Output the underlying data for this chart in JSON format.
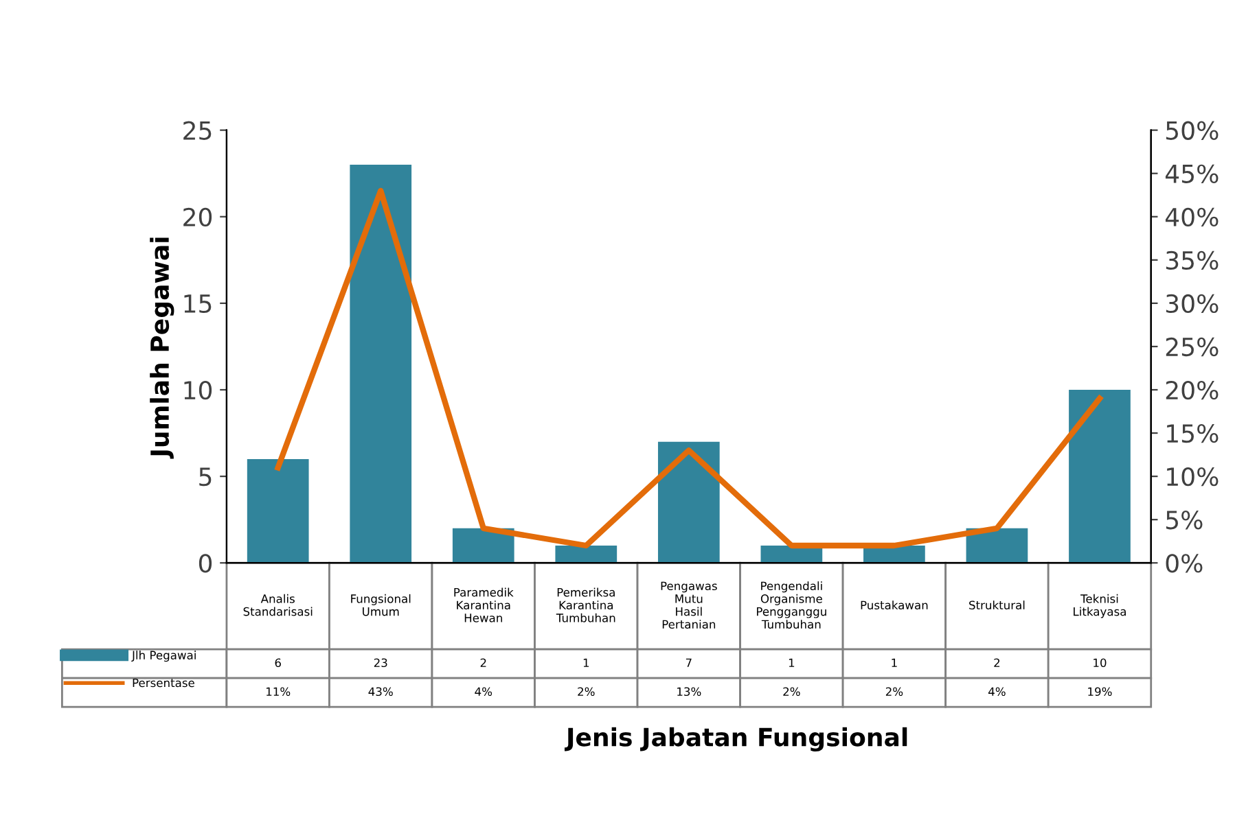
{
  "chart_data": {
    "type": "bar",
    "annotations": [
      "Jenis Jabatan Fungsional"
    ],
    "ylabel": "Jumlah Pegawai",
    "categories": [
      "Analis Standarisasi",
      "Fungsional Umum",
      "Paramedik Karantina Hewan",
      "Pemeriksa Karantina Tumbuhan",
      "Pengawas Mutu Hasil Pertanian",
      "Pengendali Organisme Pengganggu Tumbuhan",
      "Pustakawan",
      "Struktural",
      "Teknisi Litkayasa"
    ],
    "series": [
      {
        "name": "Jlh Pegawai",
        "color": "#31849b",
        "values": [
          6,
          23,
          2,
          1,
          7,
          1,
          1,
          2,
          10
        ],
        "value_labels": [
          "6",
          "23",
          "2",
          "1",
          "7",
          "1",
          "1",
          "2",
          "10"
        ]
      },
      {
        "name": "Persentase",
        "type": "line",
        "axis": "y2",
        "color": "#e36c0a",
        "values": [
          11,
          43,
          4,
          2,
          13,
          2,
          2,
          4,
          19
        ],
        "value_labels": [
          "11%",
          "43%",
          "4%",
          "2%",
          "13%",
          "2%",
          "2%",
          "4%",
          "19%"
        ]
      }
    ],
    "ylim": [
      0,
      25
    ],
    "yticks": [
      0,
      5,
      10,
      15,
      20,
      25
    ],
    "y2lim": [
      0,
      50
    ],
    "y2ticks": [
      {
        "value": 0,
        "label": "0%"
      },
      {
        "value": 5,
        "label": "5%"
      },
      {
        "value": 10,
        "label": "10%"
      },
      {
        "value": 15,
        "label": "15%"
      },
      {
        "value": 20,
        "label": "20%"
      },
      {
        "value": 25,
        "label": "25%"
      },
      {
        "value": 30,
        "label": "30%"
      },
      {
        "value": 35,
        "label": "35%"
      },
      {
        "value": 40,
        "label": "40%"
      },
      {
        "value": 45,
        "label": "45%"
      },
      {
        "value": 50,
        "label": "50%"
      }
    ],
    "grid": false,
    "legend": "bottom left",
    "marker": "none",
    "line_style": "solid"
  }
}
